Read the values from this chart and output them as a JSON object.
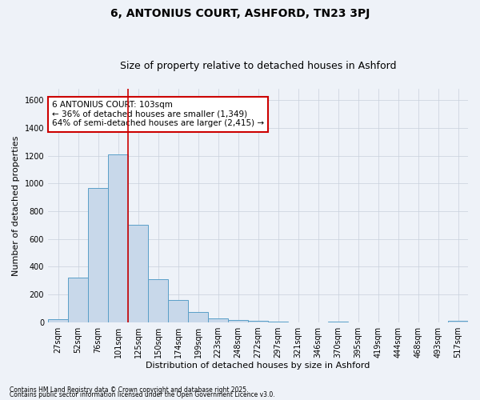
{
  "title": "6, ANTONIUS COURT, ASHFORD, TN23 3PJ",
  "subtitle": "Size of property relative to detached houses in Ashford",
  "xlabel": "Distribution of detached houses by size in Ashford",
  "ylabel": "Number of detached properties",
  "categories": [
    "27sqm",
    "52sqm",
    "76sqm",
    "101sqm",
    "125sqm",
    "150sqm",
    "174sqm",
    "199sqm",
    "223sqm",
    "248sqm",
    "272sqm",
    "297sqm",
    "321sqm",
    "346sqm",
    "370sqm",
    "395sqm",
    "419sqm",
    "444sqm",
    "468sqm",
    "493sqm",
    "517sqm"
  ],
  "values": [
    20,
    320,
    970,
    1210,
    700,
    310,
    160,
    75,
    25,
    15,
    10,
    5,
    0,
    0,
    5,
    0,
    0,
    0,
    0,
    0,
    10
  ],
  "bar_color": "#c8d8ea",
  "bar_edge_color": "#5a9fc8",
  "grid_color": "#c8d0dc",
  "background_color": "#eef2f8",
  "vline_x": 3.5,
  "vline_color": "#cc0000",
  "ylim": [
    0,
    1680
  ],
  "yticks": [
    0,
    200,
    400,
    600,
    800,
    1000,
    1200,
    1400,
    1600
  ],
  "annotation_text": "6 ANTONIUS COURT: 103sqm\n← 36% of detached houses are smaller (1,349)\n64% of semi-detached houses are larger (2,415) →",
  "annotation_box_color": "#ffffff",
  "annotation_edge_color": "#cc0000",
  "footnote1": "Contains HM Land Registry data © Crown copyright and database right 2025.",
  "footnote2": "Contains public sector information licensed under the Open Government Licence v3.0.",
  "title_fontsize": 10,
  "subtitle_fontsize": 9,
  "axis_label_fontsize": 8,
  "tick_fontsize": 7,
  "annotation_fontsize": 7.5
}
